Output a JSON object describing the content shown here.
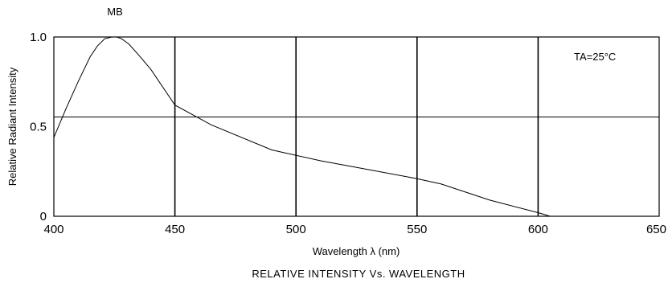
{
  "chart_data": {
    "type": "line",
    "title": "RELATIVE INTENSITY Vs. WAVELENGTH",
    "xlabel": "Wavelength λ (nm)",
    "ylabel": "Relative Radiant Intensity",
    "xlim": [
      400,
      650
    ],
    "ylim": [
      0,
      1.0
    ],
    "x_ticks": [
      "400",
      "450",
      "500",
      "550",
      "600",
      "650"
    ],
    "y_ticks": [
      "0",
      "0.5",
      "1.0"
    ],
    "grid": true,
    "annotation": "TA=25°C",
    "series": [
      {
        "name": "MB",
        "x": [
          400,
          405,
          410,
          415,
          418,
          421,
          424,
          426,
          428,
          431,
          435,
          440,
          450,
          465,
          490,
          510,
          530,
          550,
          560,
          580,
          600,
          605
        ],
        "y": [
          0.44,
          0.6,
          0.75,
          0.89,
          0.95,
          0.99,
          1.0,
          1.0,
          0.99,
          0.96,
          0.9,
          0.82,
          0.62,
          0.51,
          0.37,
          0.31,
          0.26,
          0.21,
          0.18,
          0.09,
          0.02,
          0.0
        ]
      }
    ]
  }
}
